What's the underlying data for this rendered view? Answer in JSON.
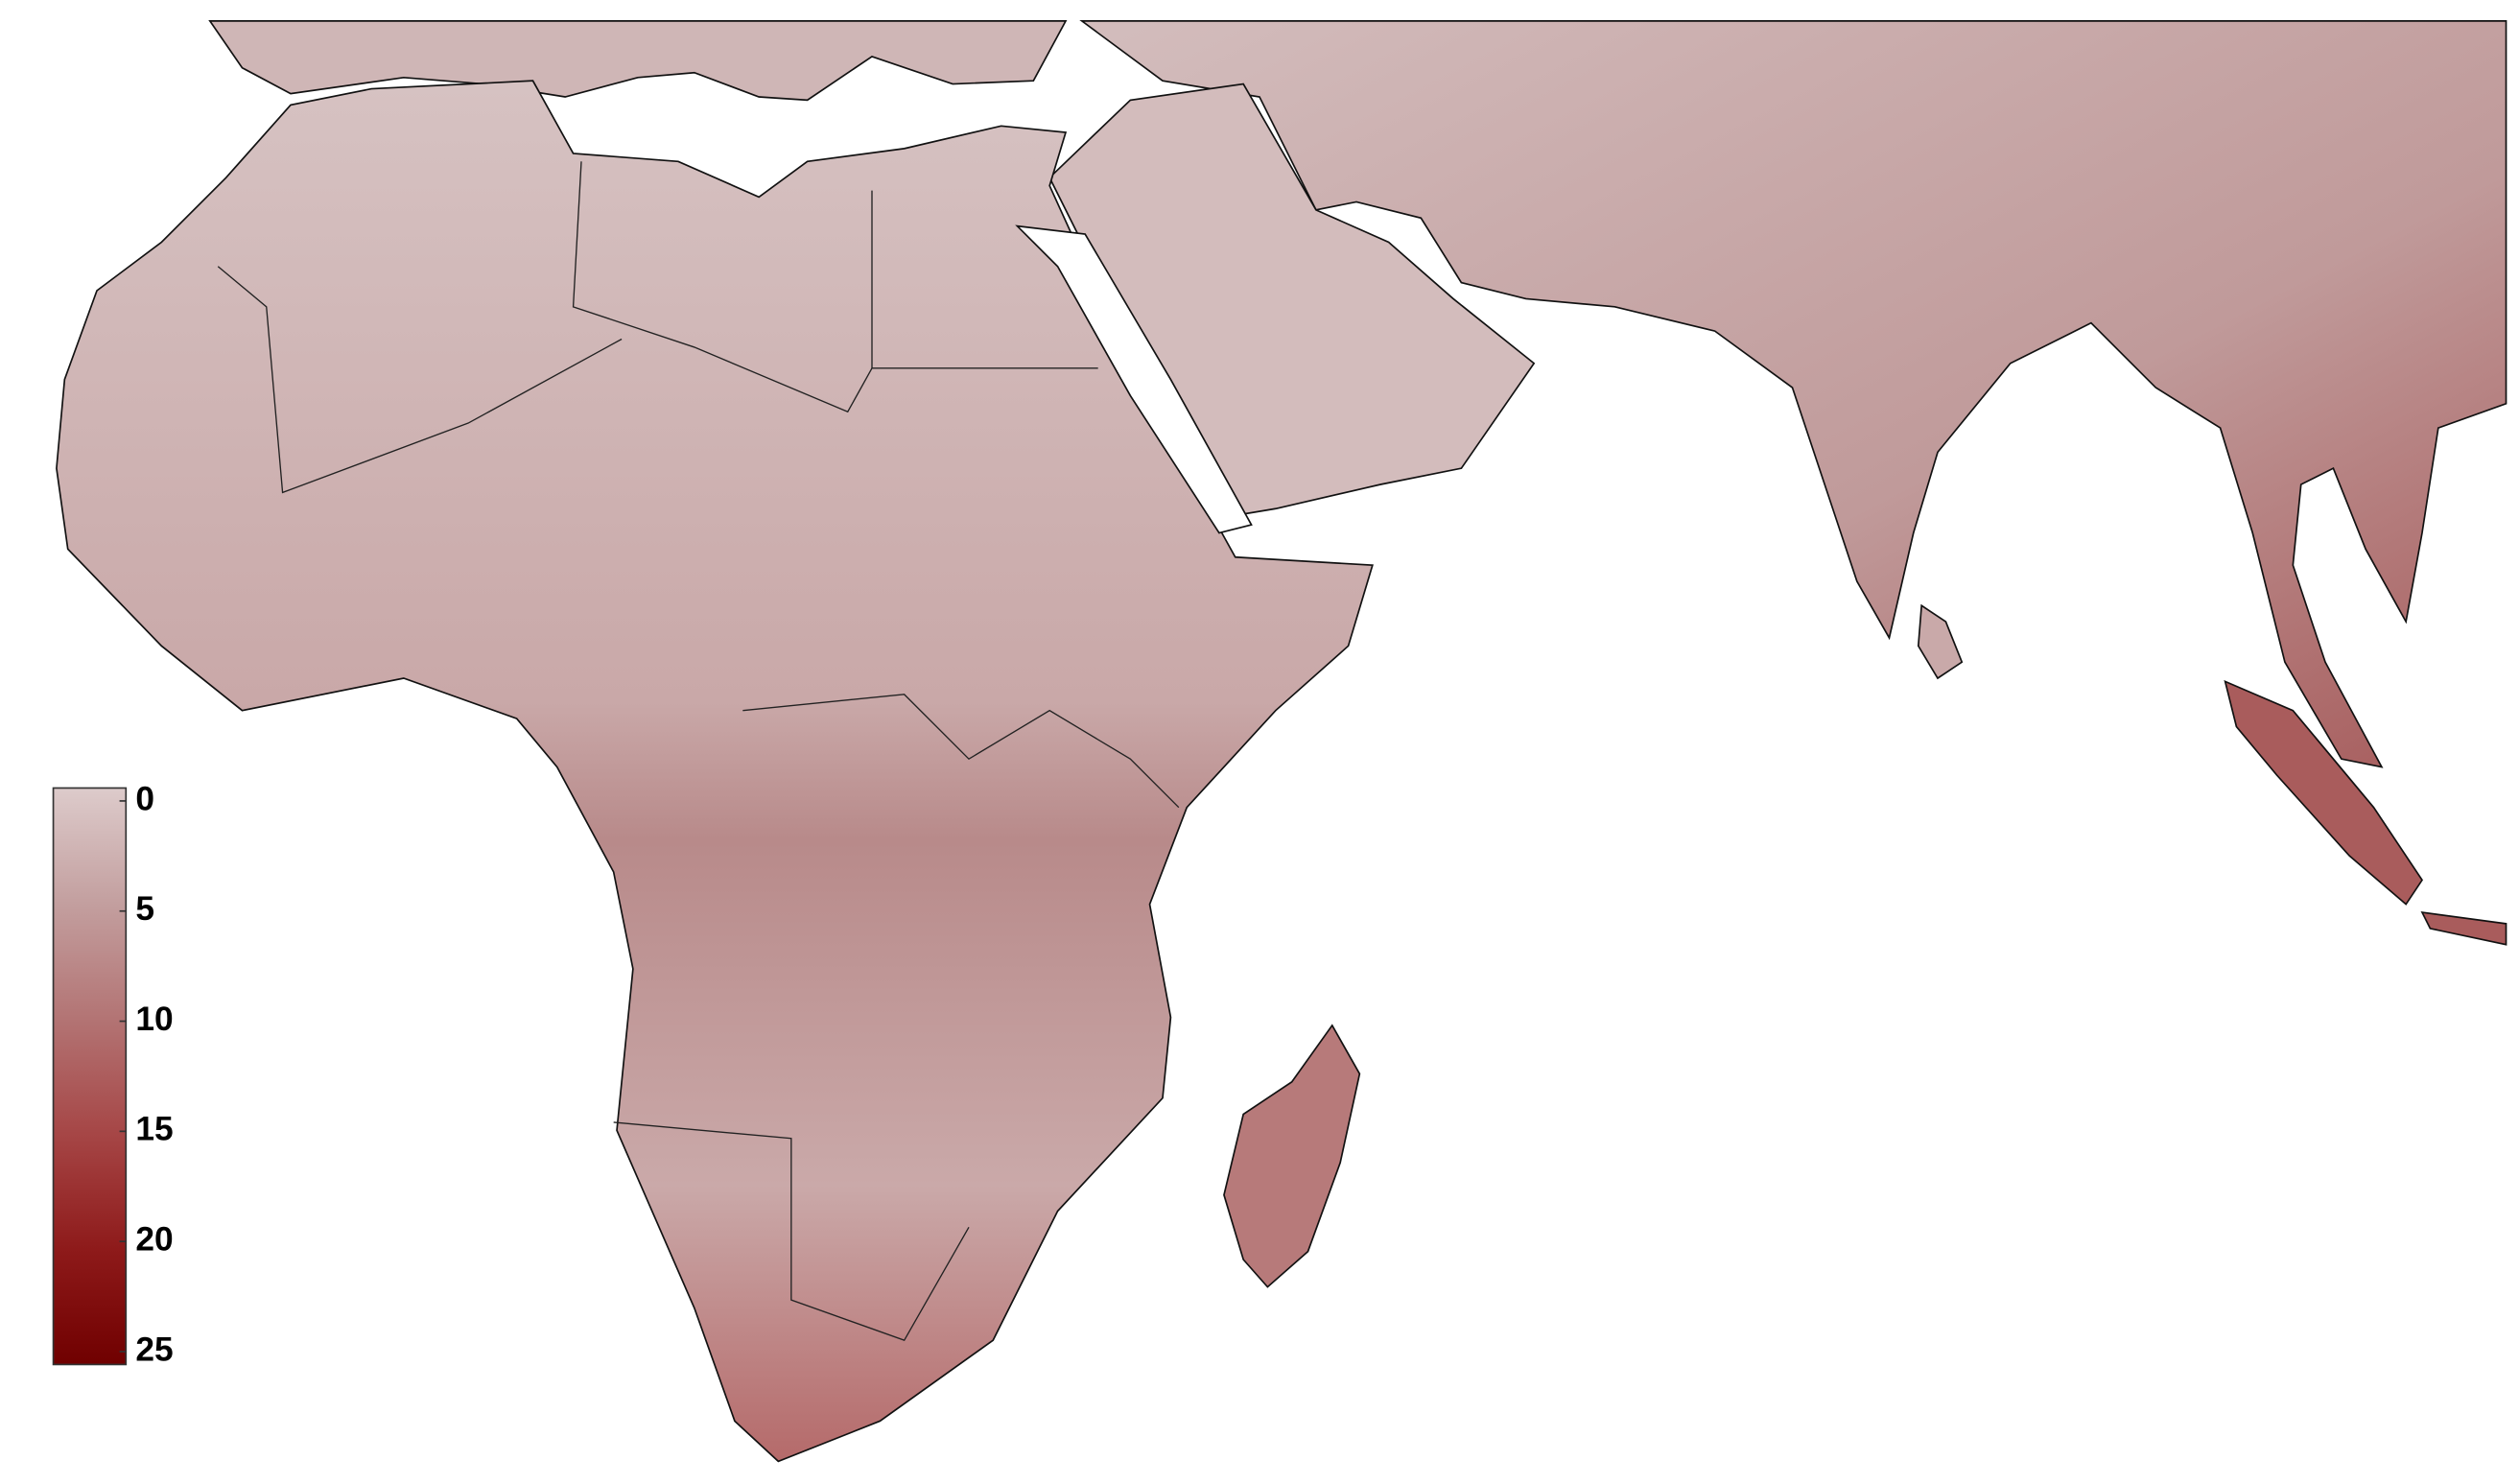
{
  "chart_data": {
    "type": "map",
    "colorbar": {
      "lim": [
        0,
        25
      ],
      "ticks": [
        0,
        5,
        10,
        15,
        20,
        25
      ],
      "colors": [
        "#ddcbcb",
        "#c39f9f",
        "#b37474",
        "#a64646",
        "#8e1a1a",
        "#700000"
      ]
    }
  }
}
